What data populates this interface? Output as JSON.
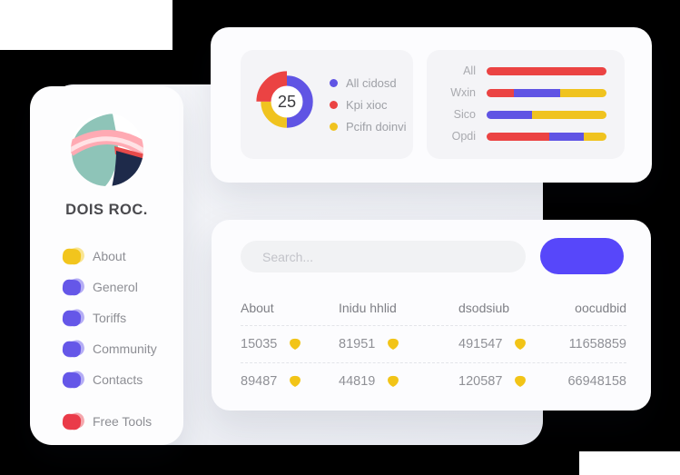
{
  "palette": {
    "purple": "#6054e4",
    "button_purple": "#5747fa",
    "red": "#eb4343",
    "yellow": "#f0c31f",
    "badge_yellow": "#f2c417"
  },
  "logo": {
    "teal": "#8ec4b8",
    "navy": "#1e2a4a",
    "red": "#e84a4a",
    "pink": "#ffaab3",
    "pink_light": "#ffe2e5"
  },
  "sidebar": {
    "brand": "DOIS ROC.",
    "items": [
      {
        "label": "About",
        "color": "#f2c51d",
        "light": "#f7dc6e"
      },
      {
        "label": "Generol",
        "color": "#6557e8",
        "light": "#9c92f2"
      },
      {
        "label": "Toriffs",
        "color": "#6557e8",
        "light": "#9c92f2"
      },
      {
        "label": "Community",
        "color": "#6557e8",
        "light": "#9c92f2"
      },
      {
        "label": "Contacts",
        "color": "#6557e8",
        "light": "#9c92f2"
      },
      {
        "label": "Free Tools",
        "color": "#ea3b49",
        "light": "#f28a92"
      }
    ]
  },
  "search": {
    "placeholder": "Search...",
    "button_label": ""
  },
  "chart_data": [
    {
      "type": "pie",
      "style": "donut",
      "center_label": "25",
      "labels": [
        "All cidosd",
        "Kpi xioc",
        "Pcifn doinvi"
      ],
      "values": [
        50,
        25,
        25
      ],
      "colors": [
        "#6054e4",
        "#eb4343",
        "#f0c31f"
      ],
      "legend_position": "right",
      "highlighted_slice": "Kpi xioc"
    },
    {
      "type": "bar",
      "orientation": "horizontal-stacked",
      "categories": [
        "All",
        "Wxin",
        "Sico",
        "Opdi"
      ],
      "value_unit": "percent",
      "rows": [
        {
          "label": "All",
          "segments": [
            {
              "color": "#eb4343",
              "value": 100
            }
          ]
        },
        {
          "label": "Wxin",
          "segments": [
            {
              "color": "#eb4343",
              "value": 23
            },
            {
              "color": "#6054e4",
              "value": 38
            },
            {
              "color": "#f0c31f",
              "value": 39
            }
          ]
        },
        {
          "label": "Sico",
          "segments": [
            {
              "color": "#6054e4",
              "value": 38
            },
            {
              "color": "#f0c31f",
              "value": 62
            }
          ]
        },
        {
          "label": "Opdi",
          "segments": [
            {
              "color": "#eb4343",
              "value": 52
            },
            {
              "color": "#6054e4",
              "value": 29
            },
            {
              "color": "#f0c31f",
              "value": 19
            }
          ]
        }
      ]
    },
    {
      "type": "table",
      "headers": [
        "About",
        "Inidu hhlid",
        "dsodsiub",
        "oocudbid"
      ],
      "cell_icon": "shield-badge-icon",
      "rows": [
        [
          "15035",
          "81951",
          "491547",
          "11658859"
        ],
        [
          "89487",
          "44819",
          "120587",
          "66948158"
        ]
      ]
    }
  ]
}
